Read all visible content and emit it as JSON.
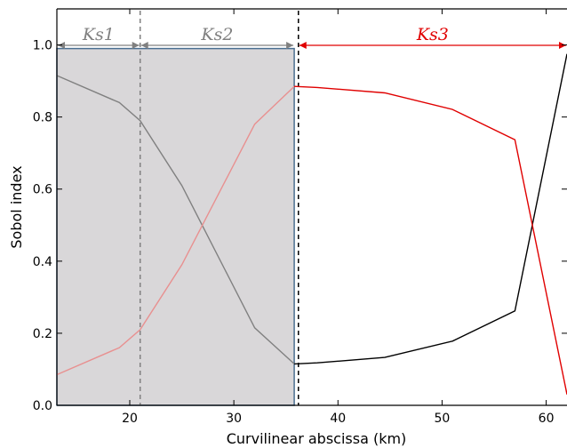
{
  "chart_data": {
    "type": "line",
    "xlabel": "Curvilinear abscissa (km)",
    "ylabel": "Sobol index",
    "xlim": [
      13,
      62
    ],
    "ylim": [
      0,
      1.1
    ],
    "x_ticks": [
      20,
      30,
      40,
      50,
      60
    ],
    "y_ticks": [
      0.0,
      0.2,
      0.4,
      0.6,
      0.8,
      1.0
    ],
    "x_tick_labels": [
      "20",
      "30",
      "40",
      "50",
      "60"
    ],
    "y_tick_labels": [
      "0.0",
      "0.2",
      "0.4",
      "0.6",
      "0.8",
      "1.0"
    ],
    "grid": false,
    "shaded_region": {
      "x": [
        13,
        35.8
      ],
      "y": [
        0,
        0.99
      ],
      "color": "#d9d7d9",
      "edge_color": "#4a6e90"
    },
    "vlines": [
      {
        "x": 21,
        "color": "#808080",
        "style": "dashed"
      },
      {
        "x": 36.2,
        "color": "#000000",
        "style": "dashed"
      }
    ],
    "zones": [
      {
        "label": "Ks1",
        "x": [
          13,
          21
        ],
        "color": "#808080"
      },
      {
        "label": "Ks2",
        "x": [
          21,
          35.8
        ],
        "color": "#808080"
      },
      {
        "label": "Ks3",
        "x": [
          36.2,
          62
        ],
        "color": "#e00000"
      }
    ],
    "series": [
      {
        "color": "#808080",
        "x": [
          13,
          19,
          21,
          25,
          32,
          35.8
        ],
        "y": [
          0.915,
          0.84,
          0.79,
          0.61,
          0.215,
          0.115
        ]
      },
      {
        "color": "#e89090",
        "x": [
          13,
          19,
          21,
          25,
          32,
          35.8
        ],
        "y": [
          0.085,
          0.16,
          0.21,
          0.39,
          0.78,
          0.885
        ]
      },
      {
        "color": "#000000",
        "x": [
          35.8,
          38,
          44.5,
          51,
          57,
          62
        ],
        "y": [
          0.115,
          0.118,
          0.133,
          0.178,
          0.262,
          0.975
        ]
      },
      {
        "color": "#e00000",
        "x": [
          35.8,
          38,
          44.5,
          51,
          57,
          62
        ],
        "y": [
          0.885,
          0.882,
          0.867,
          0.821,
          0.737,
          0.03
        ]
      }
    ]
  }
}
